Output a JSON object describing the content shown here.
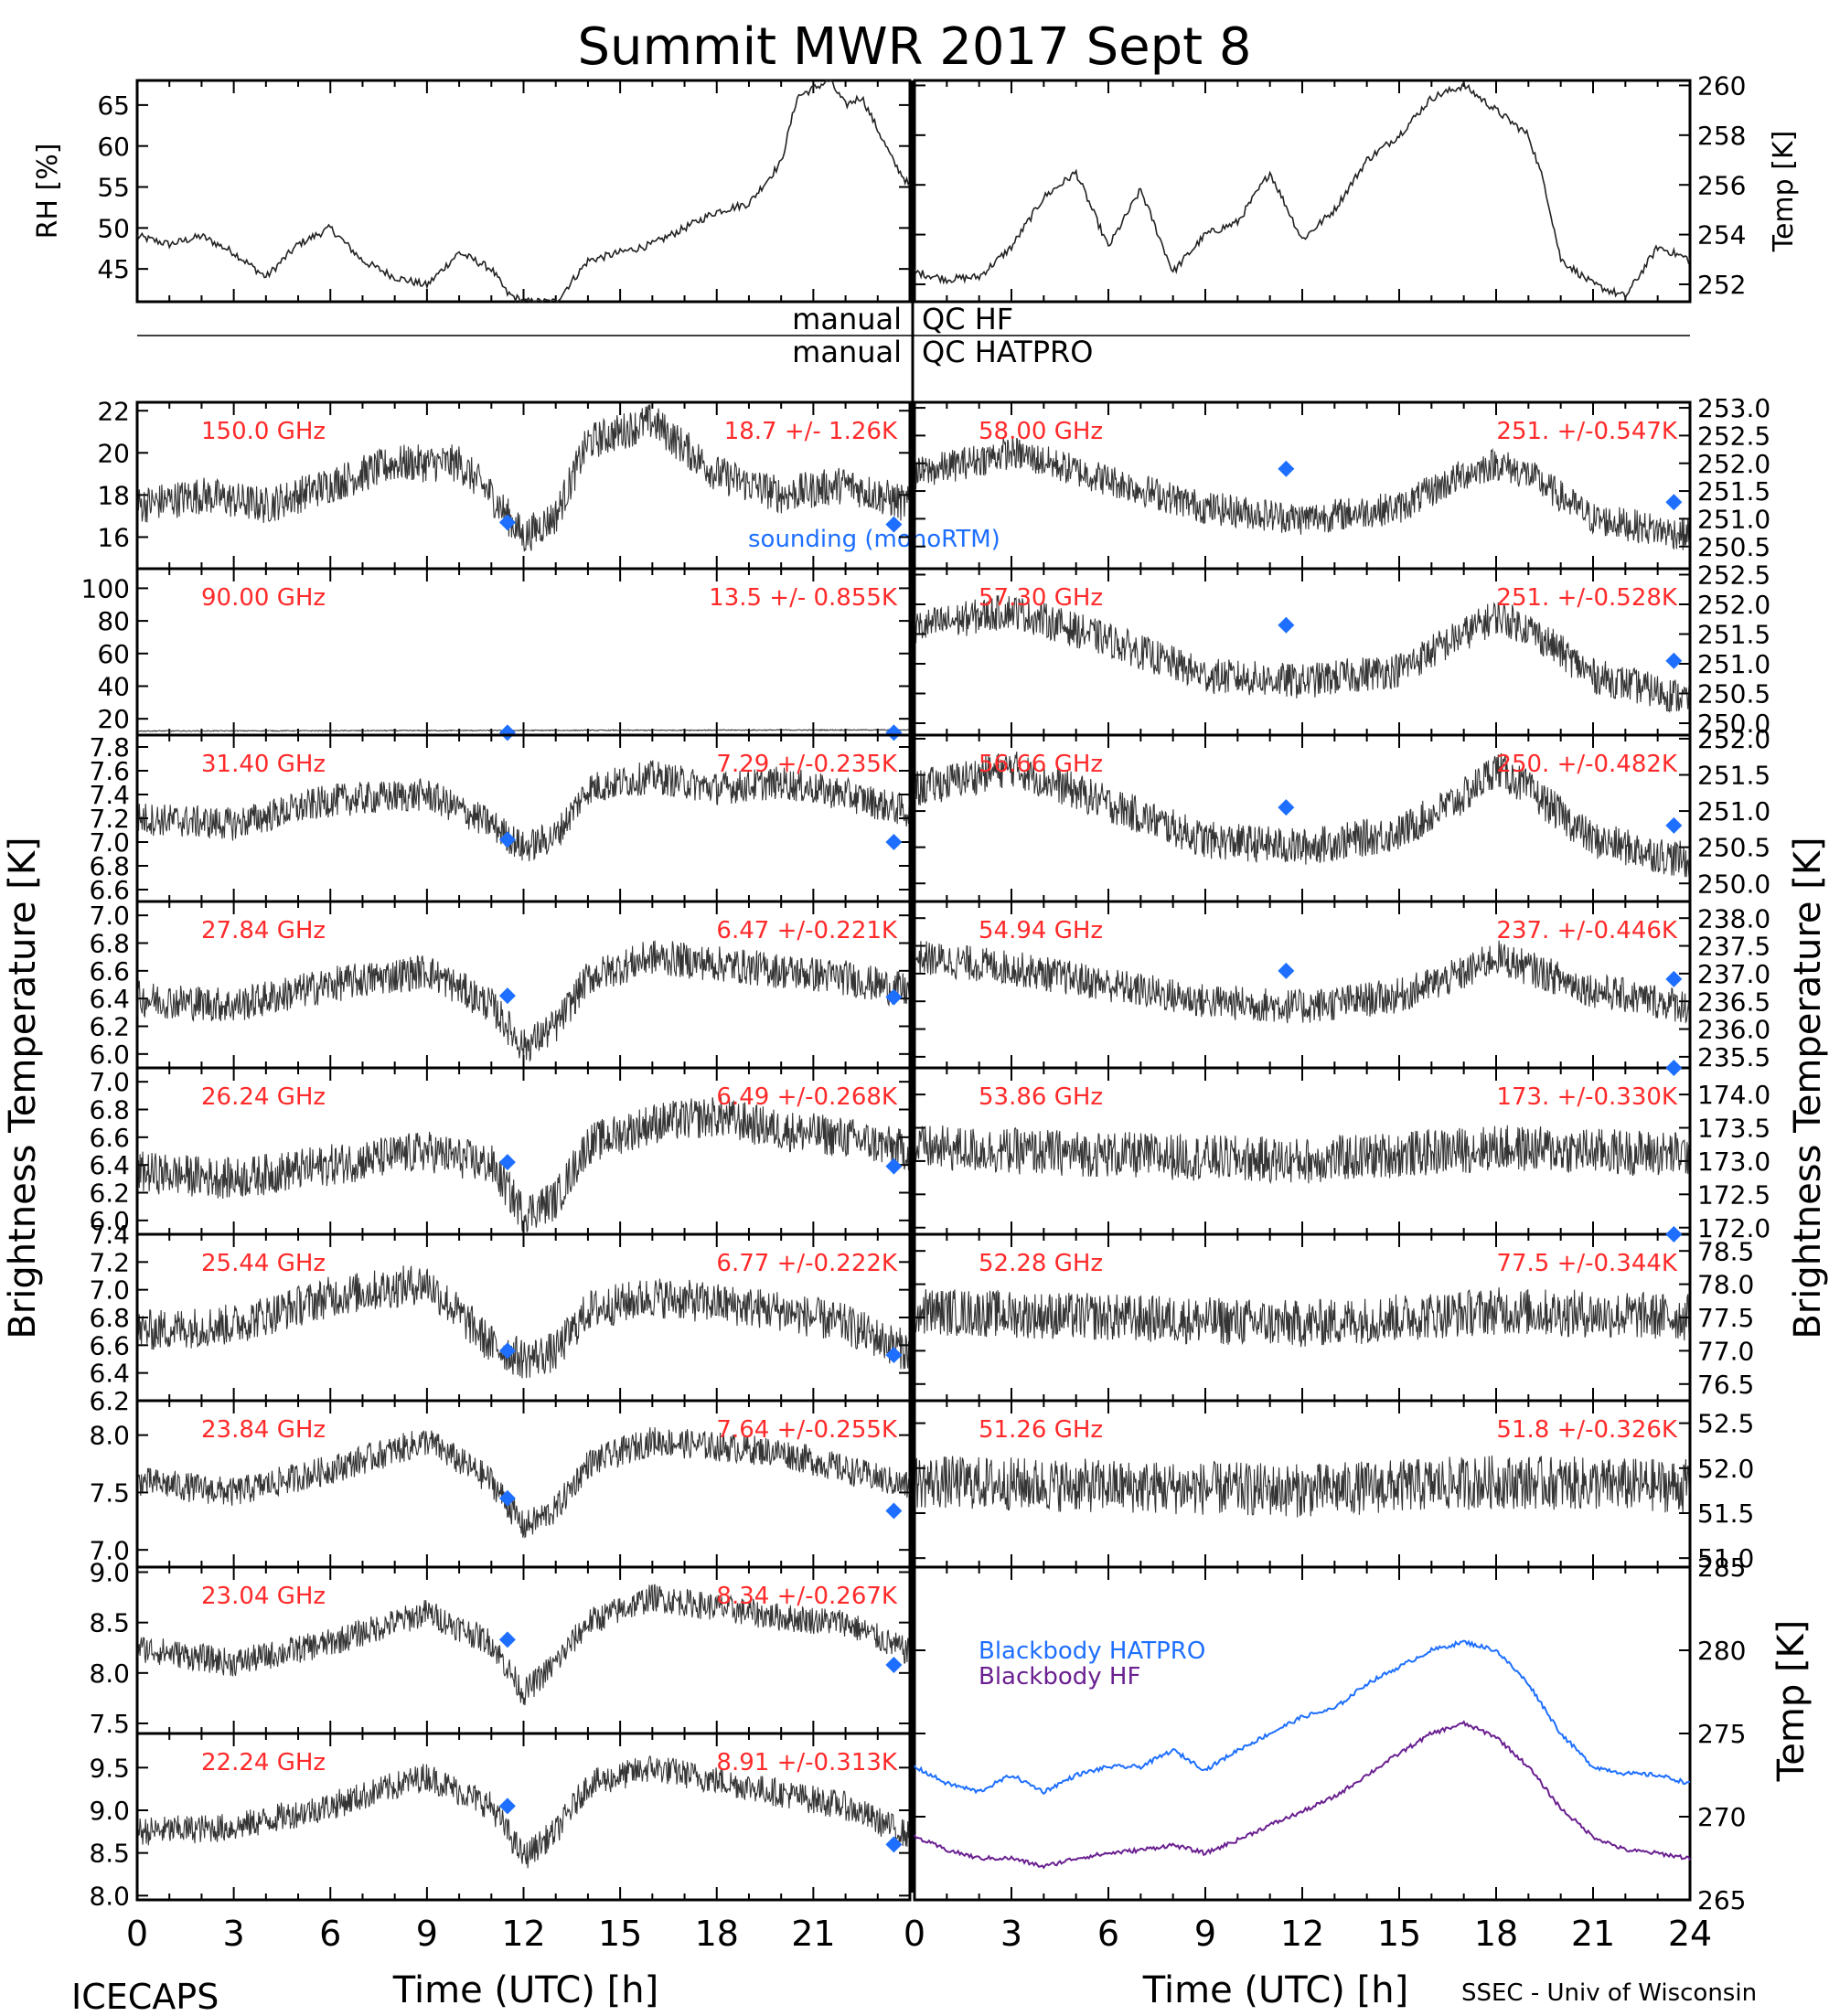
{
  "title": "Summit MWR 2017 Sept  8",
  "footer": {
    "left": "ICECAPS",
    "right": "SSEC - Univ of Wisconsin"
  },
  "colors": {
    "red": "#ff2a2a",
    "blue": "#1e6fff",
    "purple": "#6a2090",
    "trace": "#111111"
  },
  "qc_labels": [
    {
      "left": "manual",
      "right": "QC HF"
    },
    {
      "left": "manual",
      "right": "QC HATPRO"
    }
  ],
  "brightness_label": "Brightness Temperature [K]",
  "sounding_label": "sounding (monoRTM)",
  "chart_data": {
    "type": "line",
    "x_axis": {
      "label": "Time (UTC) [h]",
      "left_ticks": [
        "0",
        "3",
        "6",
        "9",
        "12",
        "15",
        "18",
        "21"
      ],
      "right_ticks": [
        "0",
        "3",
        "6",
        "9",
        "12",
        "15",
        "18",
        "21",
        "24"
      ],
      "range": [
        0,
        24
      ]
    },
    "met": {
      "rh": {
        "ylabel": "RH [%]",
        "ylim": [
          41,
          68
        ],
        "ticks": [
          "45",
          "50",
          "55",
          "60",
          "65"
        ],
        "x": [
          0,
          1,
          2,
          3,
          4,
          5,
          6,
          7,
          8,
          9,
          10,
          11,
          11.5,
          12,
          13,
          14,
          15,
          16,
          17,
          18,
          19,
          20,
          20.5,
          21,
          21.5,
          22,
          22.5,
          23,
          23.5,
          24
        ],
        "y": [
          49,
          48,
          49,
          47,
          44,
          48,
          50,
          46,
          44,
          43,
          47,
          45,
          42,
          41,
          41,
          46,
          47,
          48,
          50,
          52,
          53,
          58,
          66,
          67,
          68,
          65,
          66,
          62,
          58,
          55
        ]
      },
      "temp": {
        "ylabel": "Temp [K]",
        "ylim": [
          251.3,
          260.2
        ],
        "ticks": [
          "252",
          "254",
          "256",
          "258",
          "260"
        ],
        "x": [
          0,
          1,
          2,
          3,
          4,
          5,
          6,
          7,
          8,
          9,
          10,
          11,
          12,
          13,
          14,
          15,
          16,
          17,
          18,
          19,
          19.5,
          20,
          21,
          22,
          23,
          24
        ],
        "y": [
          252.5,
          252.2,
          252.3,
          253.5,
          255.5,
          256.5,
          253.5,
          255.8,
          252.5,
          254,
          254.5,
          256.5,
          253.8,
          255,
          257,
          258,
          259.5,
          260,
          259,
          258,
          256,
          253,
          252,
          251.5,
          253.5,
          253
        ]
      }
    },
    "left_panels": [
      {
        "freq": "150.0 GHz",
        "stats": "18.7 +/-  1.26K",
        "ylim": [
          14.5,
          22.4
        ],
        "ticks": [
          "16",
          "18",
          "20",
          "22"
        ],
        "tx": [
          0,
          2,
          4,
          6,
          8,
          10,
          11,
          12,
          13,
          14,
          16,
          18,
          20,
          22,
          24
        ],
        "ty": [
          17.5,
          18,
          17.5,
          18.5,
          19.5,
          19.5,
          18,
          16,
          17,
          20.5,
          21.5,
          19,
          18,
          18.5,
          17.5
        ],
        "noise": 0.9,
        "sounding": [
          {
            "x": 11.5,
            "y": 16.7
          },
          {
            "x": 23.5,
            "y": 16.6
          }
        ]
      },
      {
        "freq": "90.00 GHz",
        "stats": "13.5 +/- 0.855K",
        "ylim": [
          10,
          112
        ],
        "ticks": [
          "20",
          "40",
          "60",
          "80",
          "100"
        ],
        "tx": [
          0,
          24
        ],
        "ty": [
          12.5,
          13.2
        ],
        "noise": 0.3,
        "sounding": [
          {
            "x": 11.5,
            "y": 11.5
          },
          {
            "x": 23.5,
            "y": 11.5
          }
        ]
      },
      {
        "freq": "31.40 GHz",
        "stats": "7.29 +/-0.235K",
        "ylim": [
          6.5,
          7.9
        ],
        "ticks": [
          "6.6",
          "6.8",
          "7.0",
          "7.2",
          "7.4",
          "7.6",
          "7.8"
        ],
        "tx": [
          0,
          3,
          6,
          9,
          11,
          12,
          13,
          14,
          16,
          18,
          20,
          22,
          24
        ],
        "ty": [
          7.2,
          7.15,
          7.35,
          7.4,
          7.15,
          6.95,
          7.05,
          7.45,
          7.55,
          7.45,
          7.5,
          7.4,
          7.25
        ],
        "noise": 0.14,
        "sounding": [
          {
            "x": 11.5,
            "y": 7.02
          },
          {
            "x": 23.5,
            "y": 7.0
          }
        ]
      },
      {
        "freq": "27.84 GHz",
        "stats": "6.47 +/-0.221K",
        "ylim": [
          5.9,
          7.1
        ],
        "ticks": [
          "6.0",
          "6.2",
          "6.4",
          "6.6",
          "6.8",
          "7.0"
        ],
        "tx": [
          0,
          3,
          6,
          9,
          11,
          12,
          13,
          14,
          16,
          18,
          20,
          22,
          24
        ],
        "ty": [
          6.4,
          6.35,
          6.5,
          6.6,
          6.35,
          6.05,
          6.2,
          6.55,
          6.7,
          6.65,
          6.6,
          6.55,
          6.45
        ],
        "noise": 0.13,
        "sounding": [
          {
            "x": 11.5,
            "y": 6.42
          },
          {
            "x": 23.5,
            "y": 6.41
          }
        ]
      },
      {
        "freq": "26.24 GHz",
        "stats": "6.49 +/-0.268K",
        "ylim": [
          5.9,
          7.1
        ],
        "ticks": [
          "6.0",
          "6.2",
          "6.4",
          "6.6",
          "6.8",
          "7.0"
        ],
        "tx": [
          0,
          3,
          6,
          9,
          11,
          12,
          13,
          14,
          16,
          18,
          20,
          22,
          24
        ],
        "ty": [
          6.35,
          6.3,
          6.4,
          6.5,
          6.4,
          6.05,
          6.15,
          6.55,
          6.7,
          6.75,
          6.65,
          6.6,
          6.5
        ],
        "noise": 0.15,
        "sounding": [
          {
            "x": 11.5,
            "y": 6.42
          },
          {
            "x": 23.5,
            "y": 6.39
          }
        ]
      },
      {
        "freq": "25.44 GHz",
        "stats": "6.77 +/-0.222K",
        "ylim": [
          6.2,
          7.4
        ],
        "ticks": [
          "6.2",
          "6.4",
          "6.6",
          "6.8",
          "7.0",
          "7.2",
          "7.4"
        ],
        "tx": [
          0,
          3,
          6,
          9,
          11,
          12,
          13,
          14,
          16,
          18,
          20,
          22,
          24
        ],
        "ty": [
          6.7,
          6.75,
          6.95,
          7.05,
          6.6,
          6.5,
          6.55,
          6.85,
          6.95,
          6.9,
          6.85,
          6.75,
          6.55
        ],
        "noise": 0.15,
        "sounding": [
          {
            "x": 11.5,
            "y": 6.56
          },
          {
            "x": 23.5,
            "y": 6.53
          }
        ]
      },
      {
        "freq": "23.84 GHz",
        "stats": "7.64 +/-0.255K",
        "ylim": [
          6.85,
          8.3
        ],
        "ticks": [
          "7.0",
          "7.5",
          "8.0"
        ],
        "tx": [
          0,
          3,
          6,
          9,
          11,
          12,
          13,
          14,
          16,
          18,
          20,
          22,
          24
        ],
        "ty": [
          7.6,
          7.5,
          7.7,
          7.95,
          7.6,
          7.2,
          7.35,
          7.75,
          7.95,
          7.9,
          7.85,
          7.7,
          7.55
        ],
        "noise": 0.13,
        "sounding": [
          {
            "x": 11.5,
            "y": 7.45
          },
          {
            "x": 23.5,
            "y": 7.34
          }
        ]
      },
      {
        "freq": "23.04 GHz",
        "stats": "8.34 +/-0.267K",
        "ylim": [
          7.4,
          9.05
        ],
        "ticks": [
          "7.5",
          "8.0",
          "8.5",
          "9.0"
        ],
        "tx": [
          0,
          3,
          6,
          9,
          11,
          12,
          13,
          14,
          16,
          18,
          20,
          22,
          24
        ],
        "ty": [
          8.25,
          8.1,
          8.3,
          8.6,
          8.3,
          7.8,
          8.1,
          8.5,
          8.75,
          8.65,
          8.55,
          8.5,
          8.2
        ],
        "noise": 0.14,
        "sounding": [
          {
            "x": 11.5,
            "y": 8.33
          },
          {
            "x": 23.5,
            "y": 8.08
          }
        ]
      },
      {
        "freq": "22.24 GHz",
        "stats": "8.91 +/-0.313K",
        "ylim": [
          7.95,
          9.9
        ],
        "ticks": [
          "8.0",
          "8.5",
          "9.0",
          "9.5"
        ],
        "tx": [
          0,
          3,
          6,
          9,
          11,
          12,
          13,
          14,
          16,
          18,
          20,
          22,
          24
        ],
        "ty": [
          8.75,
          8.8,
          9.05,
          9.4,
          9.05,
          8.45,
          8.75,
          9.3,
          9.5,
          9.35,
          9.2,
          9.05,
          8.7
        ],
        "noise": 0.17,
        "sounding": [
          {
            "x": 11.5,
            "y": 9.05
          },
          {
            "x": 23.5,
            "y": 8.6
          }
        ]
      }
    ],
    "right_panels": [
      {
        "freq": "58.00 GHz",
        "stats": "251. +/-0.547K",
        "ylim": [
          250.1,
          253.1
        ],
        "ticks": [
          "250.5",
          "251.0",
          "251.5",
          "252.0",
          "252.5",
          "253.0"
        ],
        "tx": [
          0,
          3,
          6,
          9,
          12,
          15,
          17,
          18,
          19,
          21,
          24
        ],
        "ty": [
          251.8,
          252.2,
          251.7,
          251.2,
          251.0,
          251.2,
          251.8,
          252.0,
          251.8,
          251.0,
          250.7
        ],
        "noise": 0.3,
        "sounding": [
          {
            "x": 11.5,
            "y": 251.9
          },
          {
            "x": 23.5,
            "y": 251.3
          }
        ]
      },
      {
        "freq": "57.30 GHz",
        "stats": "251. +/-0.528K",
        "ylim": [
          249.8,
          252.6
        ],
        "ticks": [
          "250.0",
          "250.5",
          "251.0",
          "251.5",
          "252.0",
          "252.5"
        ],
        "tx": [
          0,
          3,
          6,
          9,
          12,
          15,
          17,
          18,
          19,
          21,
          24
        ],
        "ty": [
          251.6,
          251.9,
          251.4,
          250.8,
          250.7,
          250.9,
          251.5,
          251.8,
          251.6,
          250.8,
          250.4
        ],
        "noise": 0.3,
        "sounding": [
          {
            "x": 11.5,
            "y": 251.65
          },
          {
            "x": 23.5,
            "y": 251.05
          }
        ]
      },
      {
        "freq": "56.66 GHz",
        "stats": "250. +/-0.482K",
        "ylim": [
          249.75,
          252.05
        ],
        "ticks": [
          "250.0",
          "250.5",
          "251.0",
          "251.5",
          "252.0"
        ],
        "tx": [
          0,
          3,
          6,
          9,
          12,
          15,
          17,
          18,
          19,
          21,
          24
        ],
        "ty": [
          251.3,
          251.6,
          251.1,
          250.6,
          250.5,
          250.7,
          251.2,
          251.6,
          251.3,
          250.6,
          250.3
        ],
        "noise": 0.26,
        "sounding": [
          {
            "x": 11.5,
            "y": 251.05
          },
          {
            "x": 23.5,
            "y": 250.8
          }
        ]
      },
      {
        "freq": "54.94 GHz",
        "stats": "237. +/-0.446K",
        "ylim": [
          235.3,
          238.3
        ],
        "ticks": [
          "235.5",
          "236.0",
          "236.5",
          "237.0",
          "237.5",
          "238.0"
        ],
        "tx": [
          0,
          3,
          6,
          9,
          12,
          15,
          17,
          18,
          19,
          21,
          24
        ],
        "ty": [
          237.3,
          237.1,
          236.8,
          236.5,
          236.4,
          236.6,
          237.0,
          237.3,
          237.1,
          236.7,
          236.4
        ],
        "noise": 0.32,
        "sounding": [
          {
            "x": 11.5,
            "y": 237.05
          },
          {
            "x": 23.5,
            "y": 236.9
          }
        ]
      },
      {
        "freq": "53.86 GHz",
        "stats": "173. +/-0.330K",
        "ylim": [
          171.9,
          174.4
        ],
        "ticks": [
          "172.0",
          "172.5",
          "173.0",
          "173.5",
          "174.0"
        ],
        "tx": [
          0,
          6,
          12,
          18,
          24
        ],
        "ty": [
          173.2,
          173.1,
          173.0,
          173.2,
          173.1
        ],
        "noise": 0.35,
        "sounding": [
          {
            "x": 23.5,
            "y": 174.4
          }
        ]
      },
      {
        "freq": "52.28 GHz",
        "stats": "77.5 +/-0.344K",
        "ylim": [
          76.25,
          78.75
        ],
        "ticks": [
          "76.5",
          "77.0",
          "77.5",
          "78.0",
          "78.5"
        ],
        "tx": [
          0,
          6,
          12,
          18,
          24
        ],
        "ty": [
          77.6,
          77.5,
          77.4,
          77.6,
          77.5
        ],
        "noise": 0.36,
        "sounding": [
          {
            "x": 23.5,
            "y": 78.75
          }
        ]
      },
      {
        "freq": "51.26 GHz",
        "stats": "51.8 +/-0.326K",
        "ylim": [
          50.9,
          52.75
        ],
        "ticks": [
          "51.0",
          "51.5",
          "52.0",
          "52.5"
        ],
        "tx": [
          0,
          6,
          12,
          18,
          24
        ],
        "ty": [
          51.85,
          51.8,
          51.75,
          51.85,
          51.8
        ],
        "noise": 0.3,
        "sounding": []
      }
    ],
    "blackbody": {
      "ylabel": "Temp [K]",
      "ylim": [
        265,
        285
      ],
      "ticks": [
        "265",
        "270",
        "275",
        "280",
        "285"
      ],
      "series": [
        {
          "name": "Blackbody HATPRO",
          "color": "#1e6fff",
          "x": [
            0,
            1,
            2,
            3,
            4,
            5,
            6,
            7,
            8,
            9,
            10,
            11,
            12,
            13,
            14,
            15,
            16,
            17,
            18,
            19,
            20,
            21,
            22,
            23,
            24
          ],
          "y": [
            273,
            272,
            271.5,
            272.5,
            271.5,
            272.5,
            273,
            273,
            274,
            272.8,
            274,
            275,
            276,
            276.5,
            278,
            279,
            280,
            280.5,
            280,
            278,
            275,
            273,
            272.6,
            272.5,
            272
          ]
        },
        {
          "name": "Blackbody HF",
          "color": "#6a2090",
          "x": [
            0,
            1,
            2,
            3,
            4,
            5,
            6,
            7,
            8,
            9,
            10,
            11,
            12,
            13,
            14,
            15,
            16,
            17,
            18,
            19,
            20,
            21,
            22,
            23,
            24
          ],
          "y": [
            268.8,
            268,
            267.5,
            267.5,
            267,
            267.5,
            267.8,
            268,
            268.3,
            267.8,
            268.6,
            269.5,
            270.3,
            271.2,
            272.5,
            273.8,
            275,
            275.6,
            274.8,
            273,
            270.5,
            268.8,
            268,
            267.8,
            267.5
          ]
        }
      ]
    }
  }
}
